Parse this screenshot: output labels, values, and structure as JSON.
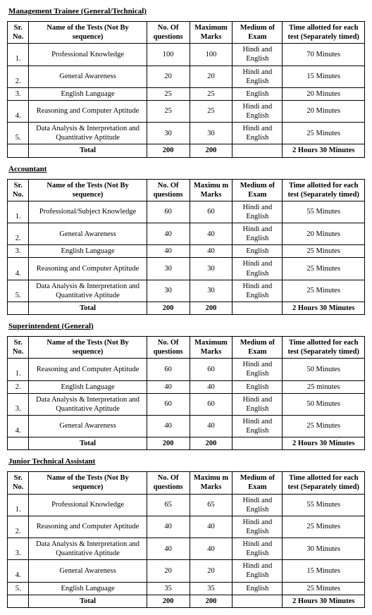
{
  "sections": [
    {
      "title": "Management  Trainee (General/Technical)",
      "headers": {
        "sr": "Sr. No.",
        "name": "Name of the Tests (Not By sequence)",
        "questions": "No. Of questions",
        "marks": "Maximum Marks",
        "medium": "Medium of Exam",
        "time": "Time allotted for each test (Separately timed)"
      },
      "rows": [
        {
          "sr": "1.",
          "name": "Professional Knowledge",
          "q": "100",
          "m": "100",
          "med": "Hindi and English",
          "t": "70 Minutes"
        },
        {
          "sr": "2.",
          "name": "General Awareness",
          "q": "20",
          "m": "20",
          "med": "Hindi and English",
          "t": "15 Minutes"
        },
        {
          "sr": "3.",
          "name": "English Language",
          "q": "25",
          "m": "25",
          "med": "English",
          "t": "20 Minutes"
        },
        {
          "sr": "4.",
          "name": "Reasoning and Computer Aptitude",
          "q": "25",
          "m": "25",
          "med": "Hindi and English",
          "t": "20 Minutes"
        },
        {
          "sr": "5.",
          "name": "Data Analysis & Interpretation and Quantitative Aptitude",
          "q": "30",
          "m": "30",
          "med": "Hindi and English",
          "t": "25 Minutes"
        }
      ],
      "total": {
        "label": "Total",
        "q": "200",
        "m": "200",
        "med": "",
        "t": "2 Hours 30 Minutes"
      }
    },
    {
      "title": "Accountant",
      "headers": {
        "sr": "Sr. No.",
        "name": "Name of the Tests (Not By sequence)",
        "questions": "No. Of questions",
        "marks": "Maximu m Marks",
        "medium": "Medium of Exam",
        "time": "Time allotted for each test (Separately timed)"
      },
      "rows": [
        {
          "sr": "1.",
          "name": "Professional/Subject Knowledge",
          "q": "60",
          "m": "60",
          "med": "Hindi and English",
          "t": "55 Minutes"
        },
        {
          "sr": "2.",
          "name": "General Awareness",
          "q": "40",
          "m": "40",
          "med": "Hindi and English",
          "t": "20 Minutes"
        },
        {
          "sr": "3.",
          "name": "English Language",
          "q": "40",
          "m": "40",
          "med": "English",
          "t": "25 Minutes"
        },
        {
          "sr": "4.",
          "name": "Reasoning and Computer Aptitude",
          "q": "30",
          "m": "30",
          "med": "Hindi and English",
          "t": "25 Minutes"
        },
        {
          "sr": "5.",
          "name": "Data Analysis & Interpretation and Quantitative Aptitude",
          "q": "30",
          "m": "30",
          "med": "Hindi and English",
          "t": "25 Minutes"
        }
      ],
      "total": {
        "label": "Total",
        "q": "200",
        "m": "200",
        "med": "",
        "t": "2 Hours 30 Minutes"
      }
    },
    {
      "title": "Superintendent (General)",
      "headers": {
        "sr": "Sr. No.",
        "name": "Name of the Tests (Not By sequence)",
        "questions": "No. Of questions",
        "marks": "Maximum Marks",
        "medium": "Medium of Exam",
        "time": "Time allotted for each test (Separately timed)"
      },
      "rows": [
        {
          "sr": "1.",
          "name": "Reasoning and Computer Aptitude",
          "q": "60",
          "m": "60",
          "med": "Hindi and English",
          "t": "50 Minutes"
        },
        {
          "sr": "2.",
          "name": "English Language",
          "q": "40",
          "m": "40",
          "med": "English",
          "t": "25 minutes"
        },
        {
          "sr": "3.",
          "name": "Data Analysis & Interpretation and Quantitative Aptitude",
          "q": "60",
          "m": "60",
          "med": "Hindi and English",
          "t": "50 Minutes"
        },
        {
          "sr": "4.",
          "name": "General Awareness",
          "q": "40",
          "m": "40",
          "med": "Hindi and English",
          "t": "25 Minutes"
        }
      ],
      "total": {
        "label": "Total",
        "q": "200",
        "m": "200",
        "med": "",
        "t": "2 Hours 30 Minutes"
      }
    },
    {
      "title": "Junior Technical Assistant",
      "headers": {
        "sr": "Sr. No.",
        "name": "Name of the Tests (Not By sequence)",
        "questions": "No. Of questions",
        "marks": "Maximu m Marks",
        "medium": "Medium of Exam",
        "time": "Time allotted for each test (Separately timed)"
      },
      "rows": [
        {
          "sr": "1.",
          "name": "Professional Knowledge",
          "q": "65",
          "m": "65",
          "med": "Hindi and English",
          "t": "55 Minutes"
        },
        {
          "sr": "2.",
          "name": "Reasoning and Computer Aptitude",
          "q": "40",
          "m": "40",
          "med": "Hindi and English",
          "t": "25 Minutes"
        },
        {
          "sr": "3.",
          "name": "Data Analysis & Interpretation and Quantitative Aptitude",
          "q": "40",
          "m": "40",
          "med": "Hindi and English",
          "t": "30 Minutes"
        },
        {
          "sr": "4.",
          "name": "General Awareness",
          "q": "20",
          "m": "20",
          "med": "Hindi and English",
          "t": "15 Minutes"
        },
        {
          "sr": "5.",
          "name": "English Language",
          "q": "35",
          "m": "35",
          "med": "English",
          "t": "25 Minutes"
        }
      ],
      "total": {
        "label": "Total",
        "q": "200",
        "m": "200",
        "med": "",
        "t": "2 Hours 30 Minutes"
      }
    }
  ]
}
